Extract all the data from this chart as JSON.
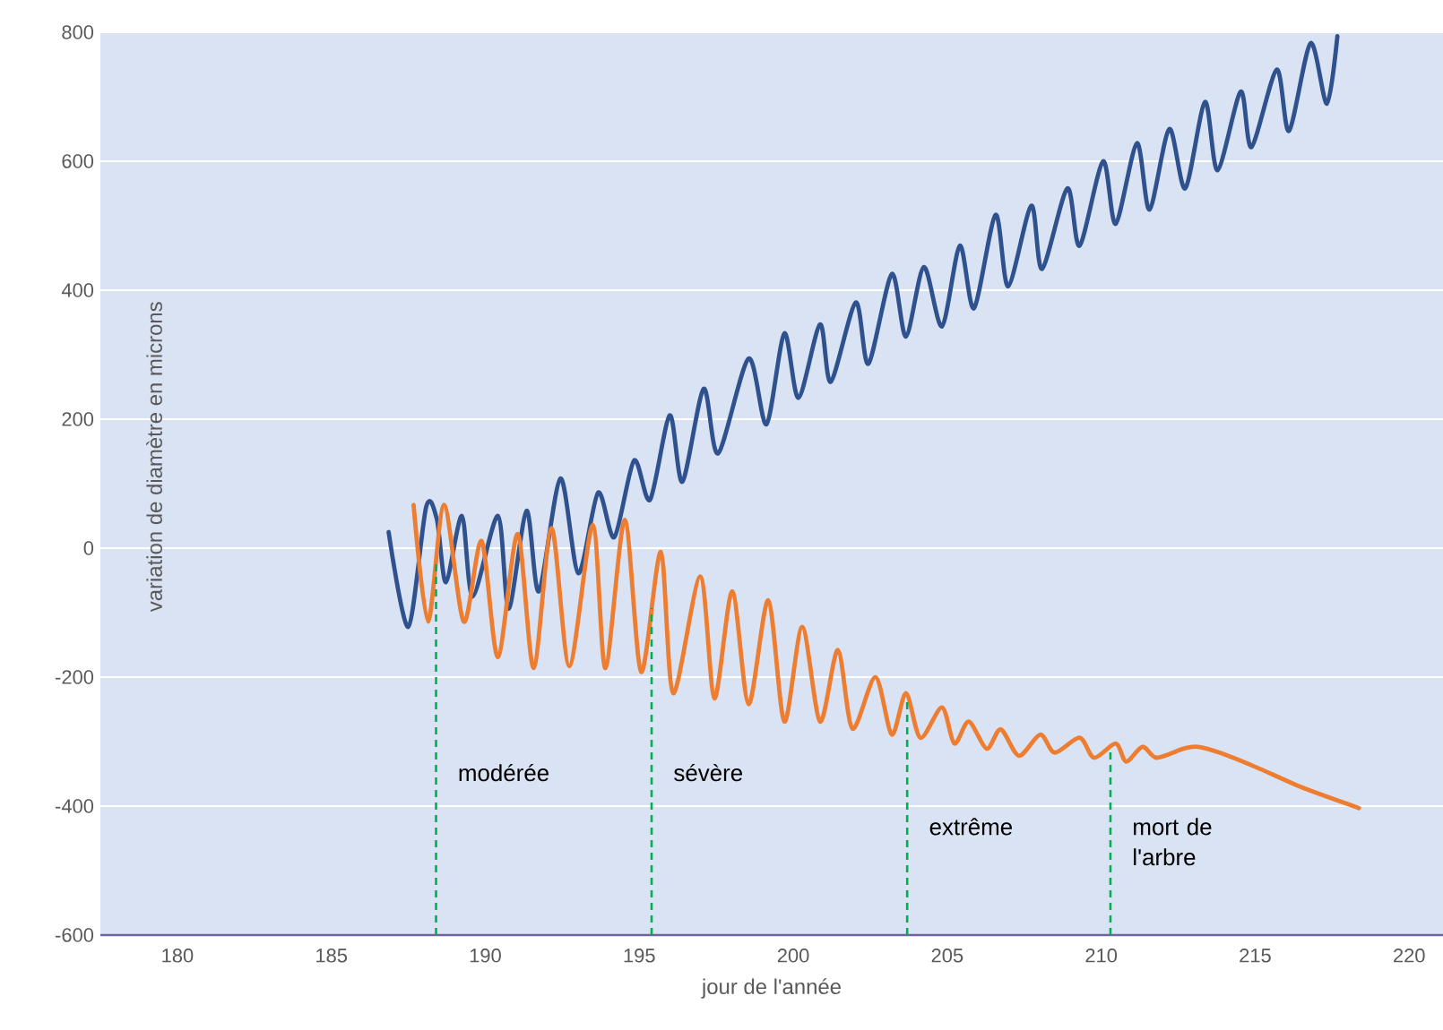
{
  "chart_data": {
    "type": "line",
    "xlabel": "jour de l'année",
    "ylabel": "variation de diamètre en microns",
    "xlim": [
      177.5,
      221.1
    ],
    "ylim": [
      -600,
      800
    ],
    "xticks": [
      180,
      185,
      190,
      195,
      200,
      205,
      210,
      215,
      220
    ],
    "yticks": [
      -600,
      -400,
      -200,
      0,
      200,
      400,
      600,
      800
    ],
    "grid": "y",
    "marker": "none",
    "line_style": "solid",
    "series": [
      {
        "color": "#2f528f",
        "x": [
          186.86,
          187.5,
          188.08,
          188.43,
          188.72,
          189.24,
          189.59,
          190.41,
          190.76,
          191.34,
          191.74,
          192.44,
          193.02,
          193.66,
          194.19,
          194.83,
          195.35,
          195.99,
          196.4,
          197.09,
          197.56,
          198.55,
          199.13,
          199.71,
          200.17,
          200.87,
          201.22,
          202.03,
          202.44,
          203.2,
          203.66,
          204.24,
          204.83,
          205.41,
          205.87,
          206.57,
          206.98,
          207.73,
          208.08,
          208.9,
          209.3,
          210.06,
          210.47,
          211.16,
          211.57,
          212.21,
          212.73,
          213.37,
          213.78,
          214.53,
          214.88,
          215.7,
          216.1,
          216.8,
          217.33,
          217.67
        ],
        "values": [
          25,
          -122,
          64,
          44,
          -53,
          50,
          -75,
          50,
          -94,
          58,
          -67,
          108,
          -39,
          86,
          17,
          136,
          75,
          206,
          103,
          247,
          147,
          294,
          192,
          333,
          233,
          347,
          258,
          381,
          286,
          425,
          328,
          436,
          344,
          469,
          372,
          517,
          406,
          531,
          433,
          558,
          469,
          600,
          503,
          628,
          525,
          650,
          558,
          692,
          586,
          708,
          622,
          742,
          647,
          783,
          689,
          794
        ]
      },
      {
        "color": "#ed7d31",
        "x": [
          187.67,
          188.14,
          188.66,
          189.3,
          189.88,
          190.41,
          191.05,
          191.57,
          192.15,
          192.73,
          193.49,
          193.9,
          194.53,
          195.06,
          195.7,
          196.1,
          196.98,
          197.44,
          198.02,
          198.55,
          199.19,
          199.71,
          200.29,
          200.87,
          201.45,
          201.92,
          202.67,
          203.2,
          203.66,
          204.13,
          204.83,
          205.23,
          205.7,
          206.28,
          206.74,
          207.33,
          208.02,
          208.49,
          209.3,
          209.77,
          210.47,
          210.81,
          211.34,
          211.8,
          212.67,
          213.14,
          213.84,
          215.0,
          216.57,
          218.37
        ],
        "values": [
          67,
          -114,
          67,
          -114,
          11,
          -169,
          22,
          -186,
          31,
          -183,
          36,
          -186,
          44,
          -192,
          -6,
          -225,
          -44,
          -233,
          -67,
          -242,
          -81,
          -269,
          -122,
          -269,
          -158,
          -280,
          -200,
          -289,
          -225,
          -294,
          -247,
          -303,
          -269,
          -311,
          -281,
          -322,
          -289,
          -317,
          -294,
          -325,
          -303,
          -331,
          -308,
          -325,
          -311,
          -308,
          -317,
          -339,
          -372,
          -403
        ]
      }
    ],
    "ref_lines": [
      {
        "axis": "x",
        "value": 188.4,
        "label": "modérée",
        "color": "#00b050",
        "line_style": "dashed"
      },
      {
        "axis": "x",
        "value": 195.4,
        "label": "sévère",
        "color": "#00b050",
        "line_style": "dashed"
      },
      {
        "axis": "x",
        "value": 203.7,
        "label": "extrême",
        "color": "#00b050",
        "line_style": "dashed"
      },
      {
        "axis": "x",
        "value": 210.3,
        "label": "mort de l'arbre",
        "color": "#00b050",
        "line_style": "dashed"
      }
    ]
  }
}
